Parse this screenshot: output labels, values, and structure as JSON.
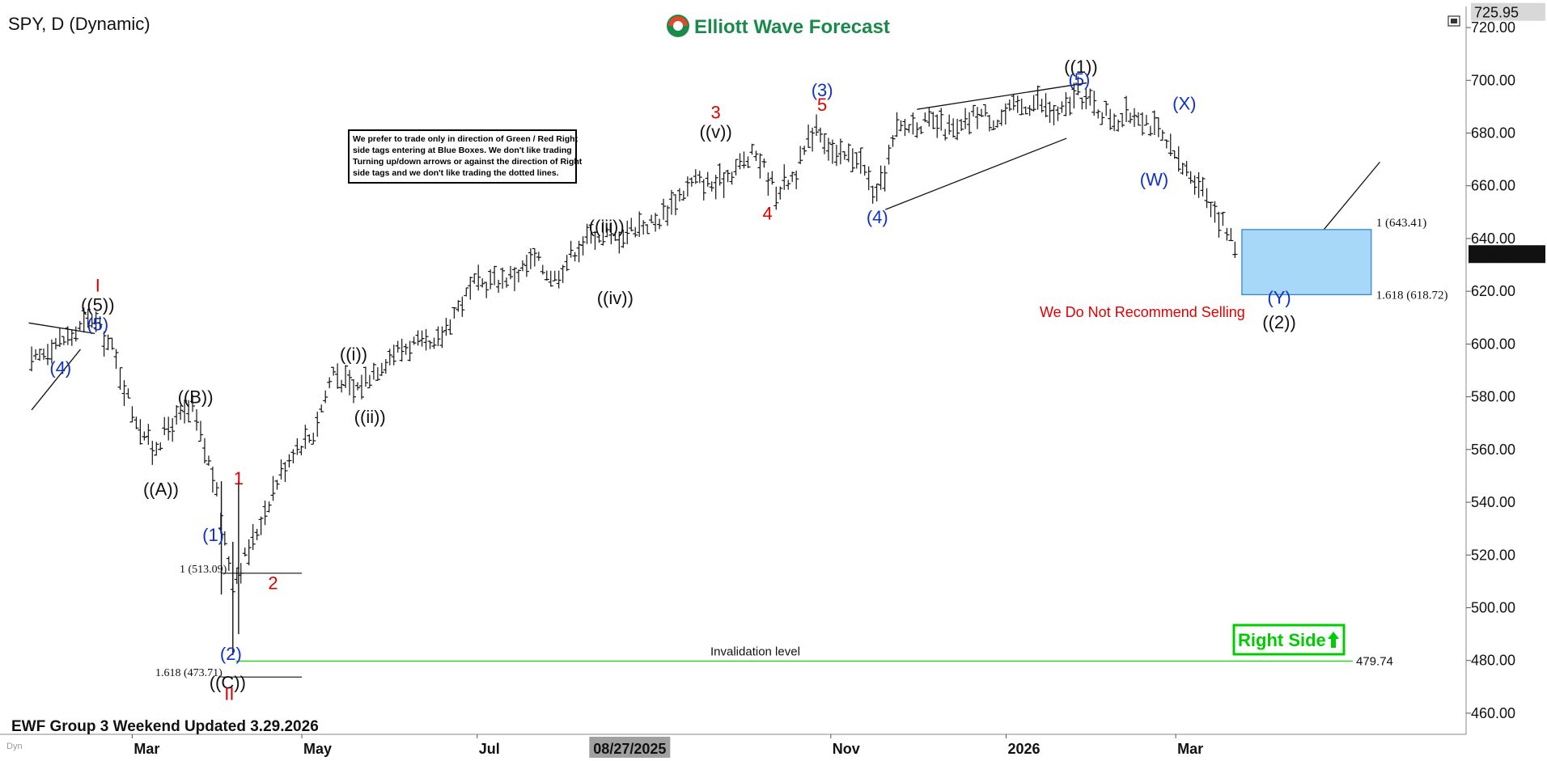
{
  "header": {
    "symbol_title": "SPY, D (Dynamic)",
    "logo_text": "Elliott Wave Forecast",
    "footer_text": "EWF Group 3 Weekend Updated 3.29.2026",
    "watermark_text": "Dyn"
  },
  "notice": {
    "lines": [
      "We prefer to trade only in direction of Green / Red Right",
      "side tags entering at Blue Boxes. We don't like trading",
      "Turning up/down arrows or against the direction of Right",
      "side tags and we don't like trading the dotted lines."
    ]
  },
  "annotations": {
    "no_sell": "We Do Not Recommend Selling",
    "invalidation_label": "Invalidation level",
    "invalidation_value": "479.74",
    "right_side": "Right Side",
    "fib_box_top": "1 (643.41)",
    "fib_box_bottom": "1.618 (618.72)",
    "fib_low_1": "1 (513.09)",
    "fib_low_2": "1.618 (473.71)"
  },
  "colors": {
    "blue_wave": "#1030c8",
    "red_wave": "#e00000",
    "black_wave": "#111111",
    "box_fill": "#a8d8f8",
    "box_stroke": "#2a7fd0",
    "invalidation": "#33cc33",
    "right_side": "#00cc00",
    "logo_green": "#1a8a4a"
  },
  "chart_data": {
    "type": "line",
    "title": "SPY, D (Dynamic)",
    "ylim": [
      452,
      728
    ],
    "y_ticks": [
      460,
      480,
      500,
      520,
      540,
      560,
      580,
      600,
      620,
      640,
      660,
      680,
      700,
      720
    ],
    "y_tick_labels": [
      "460.00",
      "480.00",
      "500.00",
      "520.00",
      "540.00",
      "560.00",
      "580.00",
      "600.00",
      "620.00",
      "640.00",
      "660.00",
      "680.00",
      "700.00",
      "720.00"
    ],
    "x_ticks": [
      "Mar",
      "May",
      "Jul",
      "Nov",
      "2026",
      "Mar"
    ],
    "x_highlight": "08/27/2025",
    "last_price": "634.09",
    "top_price": "725.95",
    "x": [
      "2025-01-27",
      "2025-02-03",
      "2025-02-10",
      "2025-02-17",
      "2025-02-24",
      "2025-03-03",
      "2025-03-10",
      "2025-03-17",
      "2025-03-24",
      "2025-03-31",
      "2025-04-07",
      "2025-04-14",
      "2025-04-21",
      "2025-04-28",
      "2025-05-05",
      "2025-05-12",
      "2025-05-19",
      "2025-05-26",
      "2025-06-02",
      "2025-06-09",
      "2025-06-16",
      "2025-06-23",
      "2025-06-30",
      "2025-07-07",
      "2025-07-14",
      "2025-07-21",
      "2025-07-28",
      "2025-08-04",
      "2025-08-11",
      "2025-08-18",
      "2025-08-25",
      "2025-09-01",
      "2025-09-08",
      "2025-09-15",
      "2025-09-22",
      "2025-09-29",
      "2025-10-06",
      "2025-10-13",
      "2025-10-20",
      "2025-10-27",
      "2025-11-03",
      "2025-11-10",
      "2025-11-17",
      "2025-11-24",
      "2025-12-01",
      "2025-12-08",
      "2025-12-15",
      "2025-12-22",
      "2025-12-29",
      "2026-01-05",
      "2026-01-12",
      "2026-01-19",
      "2026-01-26",
      "2026-02-02",
      "2026-02-09",
      "2026-02-16",
      "2026-02-23",
      "2026-03-02",
      "2026-03-09",
      "2026-03-16",
      "2026-03-23"
    ],
    "series": [
      {
        "values": [
          592,
          600,
          603,
          610,
          598,
          575,
          560,
          570,
          575,
          550,
          510,
          525,
          545,
          560,
          566,
          590,
          582,
          590,
          597,
          600,
          598,
          612,
          622,
          624,
          626,
          632,
          625,
          636,
          642,
          640,
          645,
          646,
          655,
          662,
          660,
          667,
          672,
          658,
          665,
          684,
          670,
          672,
          655,
          681,
          684,
          683,
          680,
          688,
          685,
          690,
          692,
          686,
          695,
          689,
          685,
          688,
          680,
          668,
          662,
          648,
          634
        ]
      }
    ],
    "wave_labels": [
      {
        "text": "I",
        "color": "red",
        "x": "2025-02-19",
        "y": 612
      },
      {
        "text": "((5))",
        "color": "black",
        "x": "2025-02-19",
        "y": 612
      },
      {
        "text": "(5)",
        "color": "blue",
        "x": "2025-02-19",
        "y": 612
      },
      {
        "text": "(4)",
        "color": "blue",
        "x": "2025-02-10",
        "y": 596
      },
      {
        "text": "((B))",
        "color": "black",
        "x": "2025-03-25",
        "y": 577
      },
      {
        "text": "((A))",
        "color": "black",
        "x": "2025-03-13",
        "y": 550
      },
      {
        "text": "1",
        "color": "red",
        "x": "2025-04-09",
        "y": 548
      },
      {
        "text": "(1)",
        "color": "blue",
        "x": "2025-04-03",
        "y": 532
      },
      {
        "text": "2",
        "color": "red",
        "x": "2025-04-21",
        "y": 512
      },
      {
        "text": "(2)",
        "color": "blue",
        "x": "2025-04-08",
        "y": 487
      },
      {
        "text": "((C))",
        "color": "black",
        "x": "2025-04-08",
        "y": 476
      },
      {
        "text": "II",
        "color": "red",
        "x": "2025-04-08",
        "y": 476
      },
      {
        "text": "((i))",
        "color": "black",
        "x": "2025-05-19",
        "y": 592
      },
      {
        "text": "((ii))",
        "color": "black",
        "x": "2025-05-23",
        "y": 575
      },
      {
        "text": "((iii))",
        "color": "black",
        "x": "2025-08-15",
        "y": 638
      },
      {
        "text": "((iv))",
        "color": "black",
        "x": "2025-08-18",
        "y": 620
      },
      {
        "text": "((v))",
        "color": "black",
        "x": "2025-09-22",
        "y": 672
      },
      {
        "text": "3",
        "color": "red",
        "x": "2025-09-22",
        "y": 672
      },
      {
        "text": "4",
        "color": "red",
        "x": "2025-10-10",
        "y": 654
      },
      {
        "text": "(3)",
        "color": "blue",
        "x": "2025-10-29",
        "y": 689
      },
      {
        "text": "5",
        "color": "red",
        "x": "2025-10-29",
        "y": 689
      },
      {
        "text": "(4)",
        "color": "blue",
        "x": "2025-11-20",
        "y": 652
      },
      {
        "text": "((1))",
        "color": "black",
        "x": "2026-01-27",
        "y": 698
      },
      {
        "text": "(5)",
        "color": "blue",
        "x": "2026-01-27",
        "y": 698
      },
      {
        "text": "(X)",
        "color": "blue",
        "x": "2026-03-04",
        "y": 684
      },
      {
        "text": "(W)",
        "color": "blue",
        "x": "2026-02-26",
        "y": 660
      },
      {
        "text": "(Y)",
        "color": "blue",
        "x": "2026-04-06",
        "y": 622
      },
      {
        "text": "((2))",
        "color": "black",
        "x": "2026-04-06",
        "y": 620
      }
    ]
  }
}
